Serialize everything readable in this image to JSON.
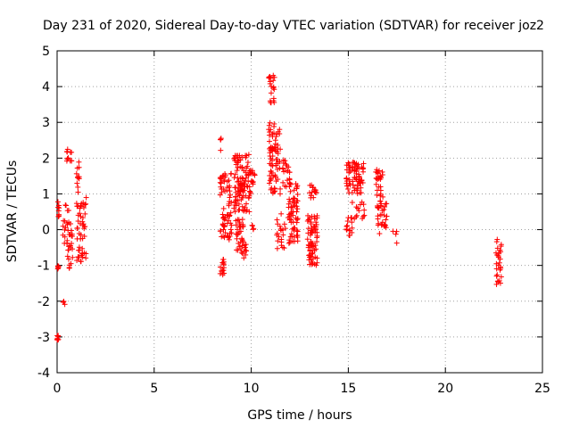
{
  "chart_data": {
    "type": "scatter",
    "title": "Day 231 of 2020, Sidereal Day-to-day VTEC variation (SDTVAR) for receiver joz2",
    "xlabel": "GPS time / hours",
    "ylabel": "SDTVAR / TECUs",
    "xlim": [
      0,
      25
    ],
    "ylim": [
      -4,
      5
    ],
    "xticks": [
      "0",
      "5",
      "10",
      "15",
      "20",
      "25"
    ],
    "yticks": [
      "-4",
      "-3",
      "-2",
      "-1",
      "0",
      "1",
      "2",
      "3",
      "4",
      "5"
    ],
    "grid": true,
    "marker": "+",
    "color": "#ff0000",
    "clusters": [
      {
        "x": [
          0.0,
          0.08
        ],
        "y": [
          -3.1,
          -2.95
        ],
        "n": 8
      },
      {
        "x": [
          0.0,
          0.1
        ],
        "y": [
          0.3,
          0.8
        ],
        "n": 8
      },
      {
        "x": [
          0.0,
          0.1
        ],
        "y": [
          -1.1,
          -1.0
        ],
        "n": 5
      },
      {
        "x": [
          0.3,
          0.45
        ],
        "y": [
          -2.2,
          -2.0
        ],
        "n": 3
      },
      {
        "x": [
          0.3,
          0.5
        ],
        "y": [
          -0.6,
          0.7
        ],
        "n": 10
      },
      {
        "x": [
          0.5,
          0.75
        ],
        "y": [
          1.9,
          2.25
        ],
        "n": 12
      },
      {
        "x": [
          0.5,
          0.8
        ],
        "y": [
          -1.1,
          0.6
        ],
        "n": 30
      },
      {
        "x": [
          1.0,
          1.15
        ],
        "y": [
          1.0,
          1.95
        ],
        "n": 12
      },
      {
        "x": [
          1.0,
          1.5
        ],
        "y": [
          -0.9,
          0.9
        ],
        "n": 50
      },
      {
        "x": [
          8.4,
          8.6
        ],
        "y": [
          -1.3,
          -0.8
        ],
        "n": 14
      },
      {
        "x": [
          8.4,
          8.5
        ],
        "y": [
          2.2,
          2.7
        ],
        "n": 4
      },
      {
        "x": [
          8.4,
          9.0
        ],
        "y": [
          -0.3,
          1.6
        ],
        "n": 70
      },
      {
        "x": [
          9.2,
          9.6
        ],
        "y": [
          -0.6,
          0.3
        ],
        "n": 30
      },
      {
        "x": [
          9.1,
          10.0
        ],
        "y": [
          0.5,
          2.1
        ],
        "n": 110
      },
      {
        "x": [
          9.5,
          9.8
        ],
        "y": [
          -0.9,
          -0.4
        ],
        "n": 12
      },
      {
        "x": [
          10.0,
          10.2
        ],
        "y": [
          0.0,
          0.2
        ],
        "n": 4
      },
      {
        "x": [
          10.0,
          10.2
        ],
        "y": [
          1.2,
          1.8
        ],
        "n": 10
      },
      {
        "x": [
          10.9,
          11.2
        ],
        "y": [
          3.5,
          4.35
        ],
        "n": 20
      },
      {
        "x": [
          10.9,
          11.5
        ],
        "y": [
          1.0,
          3.0
        ],
        "n": 80
      },
      {
        "x": [
          11.3,
          11.8
        ],
        "y": [
          -0.6,
          0.5
        ],
        "n": 20
      },
      {
        "x": [
          11.6,
          12.0
        ],
        "y": [
          1.0,
          1.95
        ],
        "n": 20
      },
      {
        "x": [
          11.9,
          12.4
        ],
        "y": [
          -0.4,
          1.4
        ],
        "n": 70
      },
      {
        "x": [
          12.9,
          13.4
        ],
        "y": [
          -1.0,
          0.4
        ],
        "n": 70
      },
      {
        "x": [
          13.0,
          13.4
        ],
        "y": [
          0.8,
          1.3
        ],
        "n": 15
      },
      {
        "x": [
          14.9,
          15.8
        ],
        "y": [
          1.0,
          1.9
        ],
        "n": 70
      },
      {
        "x": [
          14.9,
          15.2
        ],
        "y": [
          -0.2,
          0.4
        ],
        "n": 15
      },
      {
        "x": [
          15.2,
          15.9
        ],
        "y": [
          0.3,
          0.8
        ],
        "n": 15
      },
      {
        "x": [
          16.4,
          16.8
        ],
        "y": [
          0.6,
          1.7
        ],
        "n": 30
      },
      {
        "x": [
          16.5,
          17.0
        ],
        "y": [
          -0.2,
          0.8
        ],
        "n": 30
      },
      {
        "x": [
          17.3,
          17.5
        ],
        "y": [
          -0.4,
          0.05
        ],
        "n": 4
      },
      {
        "x": [
          22.6,
          22.9
        ],
        "y": [
          -1.55,
          -0.2
        ],
        "n": 28
      }
    ]
  }
}
